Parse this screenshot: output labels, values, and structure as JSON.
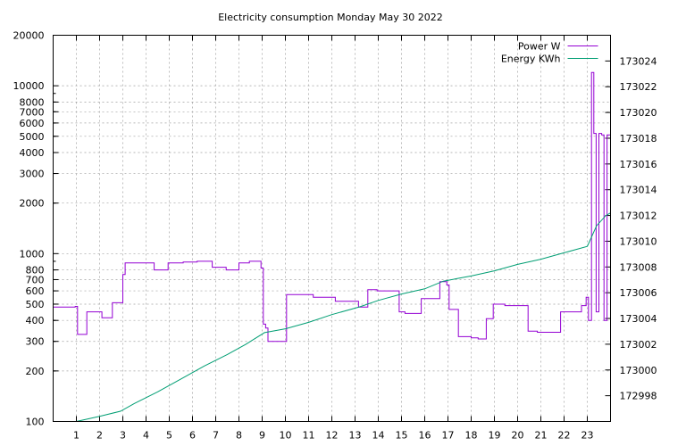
{
  "chart_data": {
    "type": "line",
    "title": "Electricity consumption Monday May 30 2022",
    "xlabel": "",
    "ylabel": "",
    "y2label": "",
    "xlim": [
      0,
      24
    ],
    "ylim": [
      100,
      20000
    ],
    "y_scale": "log",
    "y2lim": [
      172996,
      173026
    ],
    "grid": true,
    "legend_position": "top-right",
    "x_ticks": [
      1,
      2,
      3,
      4,
      5,
      6,
      7,
      8,
      9,
      10,
      11,
      12,
      13,
      14,
      15,
      16,
      17,
      18,
      19,
      20,
      21,
      22,
      23
    ],
    "x_tick_labels": [
      "1",
      "2",
      "3",
      "4",
      "5",
      "6",
      "7",
      "8",
      "9",
      "10",
      "11",
      "12",
      "13",
      "14",
      "15",
      "16",
      "17",
      "18",
      "19",
      "20",
      "21",
      "22",
      "23"
    ],
    "y_ticks": [
      100,
      200,
      300,
      400,
      500,
      600,
      700,
      800,
      1000,
      2000,
      3000,
      4000,
      5000,
      6000,
      7000,
      8000,
      10000,
      20000
    ],
    "y_tick_labels": [
      "100",
      "200",
      "300",
      "400",
      "500",
      "600",
      "700",
      "800",
      "1000",
      "2000",
      "3000",
      "4000",
      "5000",
      "6000",
      "7000",
      "8000",
      "10000",
      "20000"
    ],
    "y2_ticks": [
      172998,
      173000,
      173002,
      173004,
      173006,
      173008,
      173010,
      173012,
      173014,
      173016,
      173018,
      173020,
      173022,
      173024
    ],
    "y2_tick_labels": [
      "172998",
      "173000",
      "173002",
      "173004",
      "173006",
      "173008",
      "173010",
      "173012",
      "173014",
      "173016",
      "173018",
      "173020",
      "173022",
      "173024"
    ],
    "series": [
      {
        "name": "Power W",
        "axis": "left",
        "color": "#9400d3",
        "step": true,
        "x": [
          0,
          0.95,
          1.05,
          1.45,
          2.1,
          2.55,
          3.0,
          3.1,
          4.35,
          4.95,
          5.6,
          6.2,
          6.85,
          7.45,
          8.0,
          8.45,
          8.95,
          9.05,
          9.15,
          9.25,
          9.35,
          10.05,
          11.2,
          12.15,
          13.15,
          13.55,
          13.95,
          14.9,
          15.15,
          15.85,
          16.65,
          16.95,
          17.05,
          17.45,
          18.0,
          18.3,
          18.65,
          18.95,
          19.45,
          20.45,
          20.85,
          21.55,
          21.85,
          22.75,
          22.95,
          23.05,
          23.18,
          23.28,
          23.38,
          23.5,
          23.62,
          23.72,
          23.85,
          24.0
        ],
        "values": [
          480,
          485,
          330,
          450,
          415,
          510,
          750,
          880,
          800,
          880,
          890,
          900,
          830,
          800,
          880,
          900,
          820,
          380,
          360,
          300,
          300,
          570,
          550,
          520,
          480,
          610,
          600,
          450,
          440,
          540,
          680,
          650,
          465,
          320,
          315,
          310,
          410,
          500,
          490,
          345,
          340,
          340,
          450,
          490,
          550,
          400,
          12000,
          5200,
          450,
          5200,
          5100,
          400,
          5100,
          400
        ]
      },
      {
        "name": "Energy KWh",
        "axis": "right",
        "color": "#009e73",
        "step": false,
        "x": [
          1.0,
          2.0,
          2.9,
          3.5,
          4.5,
          5.5,
          6.5,
          7.5,
          8.3,
          9.1,
          10.0,
          11.0,
          12.0,
          13.2,
          14.0,
          15.0,
          16.0,
          16.8,
          17.4,
          18.0,
          19.0,
          20.0,
          21.0,
          22.0,
          23.0,
          23.4,
          23.8,
          24.0
        ],
        "values": [
          172996.0,
          172996.4,
          172996.8,
          172997.4,
          172998.3,
          172999.3,
          173000.3,
          173001.2,
          173002.0,
          173002.9,
          173003.2,
          173003.7,
          173004.3,
          173004.9,
          173005.4,
          173005.9,
          173006.3,
          173006.9,
          173007.1,
          173007.3,
          173007.7,
          173008.2,
          173008.6,
          173009.1,
          173009.6,
          173011.2,
          173012.0,
          173012.2
        ]
      }
    ]
  }
}
